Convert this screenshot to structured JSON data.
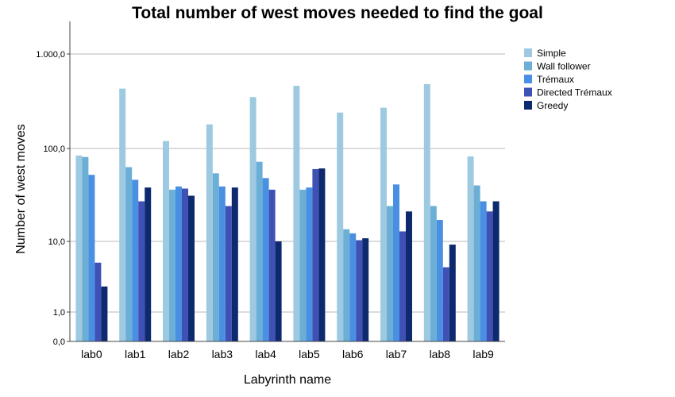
{
  "chart_data": {
    "type": "bar",
    "title": "Total number of west moves needed to find the goal",
    "xlabel": "Labyrinth name",
    "ylabel": "Number of west moves",
    "yscale": "log",
    "ylim": [
      0,
      2000
    ],
    "yticks": [
      0,
      1,
      10,
      100,
      1000
    ],
    "ytick_labels": [
      "0,0",
      "1,0",
      "10,0",
      "100,0",
      "1.000,0"
    ],
    "grid": "horizontal",
    "legend_position": "right",
    "categories": [
      "lab0",
      "lab1",
      "lab2",
      "lab3",
      "lab4",
      "lab5",
      "lab6",
      "lab7",
      "lab8",
      "lab9"
    ],
    "series": [
      {
        "name": "Simple",
        "color": "#9ecae1",
        "values": [
          84,
          430,
          120,
          180,
          350,
          460,
          240,
          270,
          480,
          82
        ]
      },
      {
        "name": "Wall follower",
        "color": "#6baed6",
        "values": [
          81,
          63,
          36,
          54,
          72,
          36,
          13.5,
          24,
          24,
          40
        ]
      },
      {
        "name": "Trémaux",
        "color": "#4a90e2",
        "values": [
          52,
          46,
          39,
          39,
          48,
          38,
          12.2,
          41,
          17,
          27
        ]
      },
      {
        "name": "Directed Trémaux",
        "color": "#3f51b5",
        "values": [
          5,
          27,
          37,
          24,
          36,
          60,
          10.3,
          12.8,
          4.3,
          21
        ]
      },
      {
        "name": "Greedy",
        "color": "#0d2a6e",
        "values": [
          2.3,
          38,
          31,
          38,
          10,
          61,
          10.8,
          21,
          9,
          27
        ]
      }
    ]
  }
}
